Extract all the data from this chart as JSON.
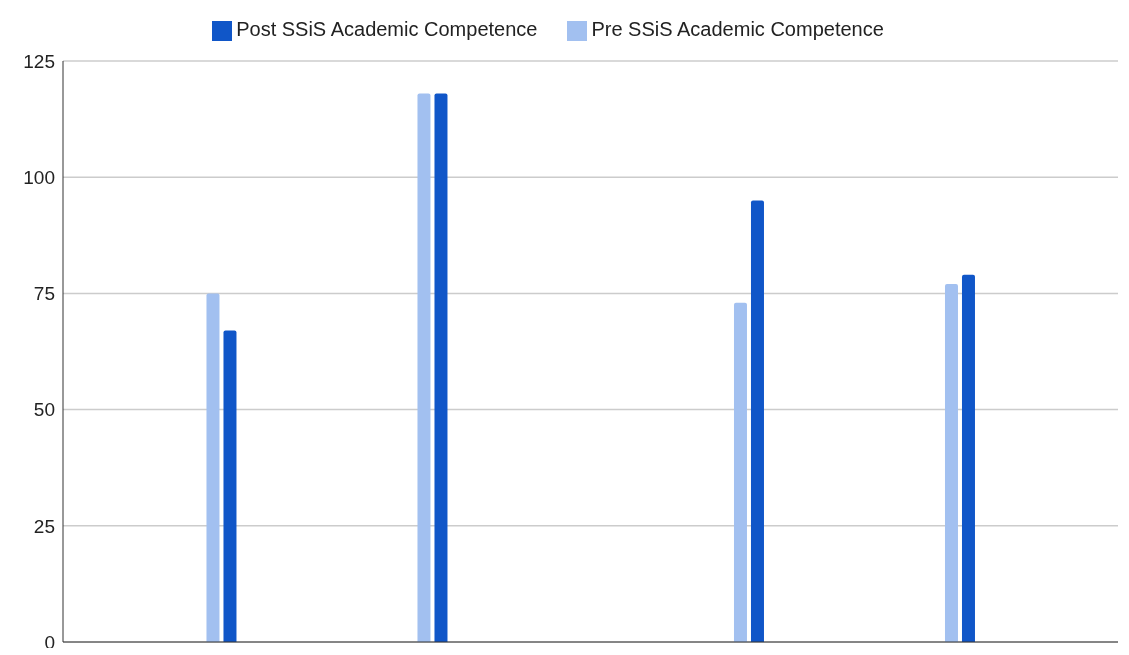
{
  "chart_data": {
    "type": "bar",
    "categories": [
      null,
      null,
      null,
      null,
      null,
      null,
      null,
      null,
      null,
      null
    ],
    "series": [
      {
        "name": "Pre SSiS Academic Competence",
        "color": "#a2c0f0",
        "values": [
          null,
          75,
          null,
          118,
          null,
          null,
          73,
          null,
          77,
          null
        ]
      },
      {
        "name": "Post SSiS Academic Competence",
        "color": "#1056c8",
        "values": [
          null,
          67,
          null,
          118,
          null,
          null,
          95,
          null,
          79,
          null
        ]
      }
    ],
    "ylim": [
      0,
      125
    ],
    "yticks": [
      0,
      25,
      50,
      75,
      100,
      125
    ],
    "grid": "y",
    "legend": "top"
  }
}
